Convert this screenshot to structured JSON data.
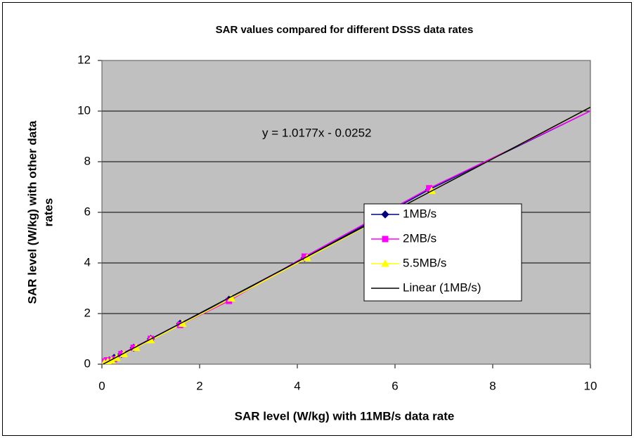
{
  "chart_data": {
    "type": "scatter",
    "title": "SAR values compared for different DSSS data rates",
    "xlabel": "SAR level (W/kg) with 11MB/s data rate",
    "ylabel": [
      "SAR level (W/kg) with other data",
      "rates"
    ],
    "xlim": [
      0,
      10
    ],
    "ylim": [
      0,
      12
    ],
    "xticks": [
      0,
      2,
      4,
      6,
      8,
      10
    ],
    "yticks": [
      0,
      2,
      4,
      6,
      8,
      10,
      12
    ],
    "grid": true,
    "series": [
      {
        "name": "1MB/s",
        "color": "#000080",
        "marker": "diamond",
        "x": [
          0.05,
          0.1,
          0.15,
          0.25,
          0.4,
          0.65,
          1.0,
          1.6,
          2.6,
          4.15,
          6.7,
          10.1
        ],
        "values": [
          0.05,
          0.1,
          0.15,
          0.25,
          0.4,
          0.65,
          1.0,
          1.6,
          2.55,
          4.2,
          6.9,
          10.1
        ]
      },
      {
        "name": "2MB/s",
        "color": "#ff00ff",
        "marker": "square",
        "x": [
          0.05,
          0.1,
          0.15,
          0.25,
          0.4,
          0.65,
          1.0,
          1.6,
          2.6,
          4.15,
          6.7,
          10.1
        ],
        "values": [
          0.1,
          0.15,
          0.15,
          0.2,
          0.4,
          0.65,
          1.0,
          1.55,
          2.5,
          4.25,
          6.95,
          10.1
        ]
      },
      {
        "name": "5.5MB/s",
        "color": "#ffff00",
        "marker": "triangle",
        "x": [
          0.05,
          0.12,
          0.2,
          0.3,
          0.45,
          0.7,
          1.0,
          1.65,
          2.65,
          4.2,
          6.75,
          10.1
        ],
        "values": [
          0.05,
          0.1,
          0.15,
          0.25,
          0.4,
          0.65,
          0.95,
          1.6,
          2.6,
          4.2,
          6.85,
          10.25
        ]
      }
    ],
    "trendline": {
      "name": "Linear (1MB/s)",
      "color": "#000000",
      "slope": 1.0177,
      "intercept": -0.0252,
      "label": "y = 1.0177x - 0.0252"
    }
  }
}
